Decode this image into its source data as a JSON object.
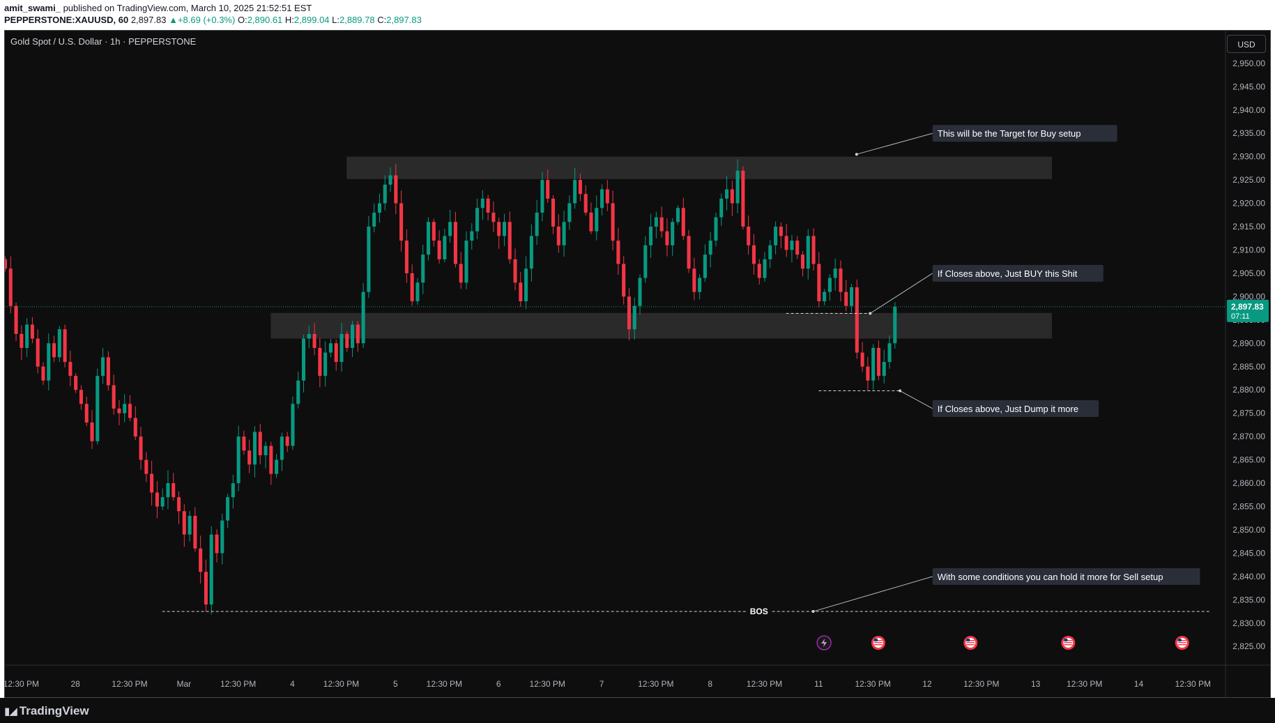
{
  "header": {
    "author": "amit_swami_",
    "published": "published on TradingView.com, March 10, 2025 21:52:51 EST",
    "symbol": "PEPPERSTONE:XAUUSD, 60",
    "last": "2,897.83",
    "arrow": "▲",
    "change": "+8.69 (+0.3%)",
    "o_label": "O:",
    "o_val": "2,890.61",
    "h_label": "H:",
    "h_val": "2,899.04",
    "l_label": "L:",
    "l_val": "2,889.78",
    "c_label": "C:",
    "c_val": "2,897.83"
  },
  "chart_title": "Gold Spot / U.S. Dollar · 1h · PEPPERSTONE",
  "currency_button": "USD",
  "footer_logo": "TradingView",
  "footer_logo_icon": "tradingview-logo-icon",
  "colors": {
    "up": "#089981",
    "down": "#f23645",
    "background": "#0e0e0e",
    "zone": "#2a2a2a",
    "price_tag": "#089981"
  },
  "chart_data": {
    "type": "candlestick",
    "title": "Gold Spot / U.S. Dollar · 1h · PEPPERSTONE",
    "ylim": [
      2821,
      2957
    ],
    "y_ticks": [
      2825,
      2830,
      2835,
      2840,
      2845,
      2850,
      2855,
      2860,
      2865,
      2870,
      2875,
      2880,
      2885,
      2890,
      2895,
      2900,
      2905,
      2910,
      2915,
      2920,
      2925,
      2930,
      2935,
      2940,
      2945,
      2950
    ],
    "y_tick_labels": [
      "2,825.00",
      "2,830.00",
      "2,835.00",
      "2,840.00",
      "2,845.00",
      "2,850.00",
      "2,855.00",
      "2,860.00",
      "2,865.00",
      "2,870.00",
      "2,875.00",
      "2,880.00",
      "2,885.00",
      "2,890.00",
      "2,895.00",
      "2,900.00",
      "2,905.00",
      "2,910.00",
      "2,915.00",
      "2,920.00",
      "2,925.00",
      "2,930.00",
      "2,935.00",
      "2,940.00",
      "2,945.00",
      "2,950.00"
    ],
    "x_range": [
      0,
      225
    ],
    "x_ticks": [
      {
        "x": 3,
        "label": "12:30 PM"
      },
      {
        "x": 13,
        "label": "28"
      },
      {
        "x": 23,
        "label": "12:30 PM"
      },
      {
        "x": 33,
        "label": "Mar"
      },
      {
        "x": 43,
        "label": "12:30 PM"
      },
      {
        "x": 53,
        "label": "4"
      },
      {
        "x": 62,
        "label": "12:30 PM"
      },
      {
        "x": 72,
        "label": "5"
      },
      {
        "x": 81,
        "label": "12:30 PM"
      },
      {
        "x": 91,
        "label": "6"
      },
      {
        "x": 100,
        "label": "12:30 PM"
      },
      {
        "x": 110,
        "label": "7"
      },
      {
        "x": 120,
        "label": "12:30 PM"
      },
      {
        "x": 130,
        "label": "8"
      },
      {
        "x": 140,
        "label": "12:30 PM"
      },
      {
        "x": 150,
        "label": "11"
      },
      {
        "x": 160,
        "label": "12:30 PM"
      },
      {
        "x": 170,
        "label": "12"
      },
      {
        "x": 180,
        "label": "12:30 PM"
      },
      {
        "x": 190,
        "label": "13"
      },
      {
        "x": 199,
        "label": "12:30 PM"
      },
      {
        "x": 209,
        "label": "14"
      },
      {
        "x": 219,
        "label": "12:30 PM"
      }
    ],
    "closes": [
      2906,
      2898,
      2892,
      2889,
      2894,
      2891,
      2885,
      2882,
      2890,
      2887,
      2893,
      2886,
      2883,
      2880,
      2877,
      2873,
      2869,
      2883,
      2887,
      2881,
      2876,
      2875,
      2877,
      2874,
      2870,
      2865,
      2862,
      2858,
      2855,
      2857,
      2860,
      2857,
      2854,
      2849,
      2853,
      2846,
      2841,
      2834,
      2849,
      2845,
      2852,
      2857,
      2860,
      2870,
      2867,
      2864,
      2871,
      2866,
      2868,
      2862,
      2865,
      2870,
      2868,
      2877,
      2882,
      2891,
      2892,
      2889,
      2883,
      2888,
      2890,
      2886,
      2892,
      2889,
      2894,
      2890,
      2901,
      2915,
      2918,
      2920,
      2924,
      2926,
      2920,
      2912,
      2905,
      2899,
      2903,
      2909,
      2916,
      2912,
      2908,
      2913,
      2916,
      2907,
      2903,
      2912,
      2914,
      2919,
      2921,
      2918,
      2916,
      2913,
      2916,
      2908,
      2903,
      2899,
      2906,
      2913,
      2918,
      2925,
      2921,
      2915,
      2911,
      2916,
      2920,
      2925,
      2922,
      2918,
      2914,
      2919,
      2923,
      2920,
      2912,
      2907,
      2900,
      2893,
      2898,
      2904,
      2911,
      2915,
      2917,
      2914,
      2911,
      2916,
      2919,
      2913,
      2906,
      2901,
      2904,
      2909,
      2912,
      2917,
      2921,
      2923,
      2920,
      2927,
      2915,
      2911,
      2907,
      2904,
      2908,
      2911,
      2915,
      2913,
      2910,
      2912,
      2909,
      2906,
      2913,
      2907,
      2899,
      2901,
      2904,
      2906,
      2901,
      2898,
      2902,
      2888,
      2885,
      2882,
      2889,
      2883,
      2886,
      2890,
      2897.83
    ],
    "last_price": 2897.83,
    "last_price_label": "2,897.83",
    "countdown": "07:11",
    "zones": [
      {
        "from": 63,
        "to": 193,
        "top": 2930.0,
        "bottom": 2925.2
      },
      {
        "from": 49,
        "to": 193,
        "top": 2896.5,
        "bottom": 2891.0
      }
    ],
    "levels": [
      {
        "from": 29,
        "to": 222,
        "y": 2832.5,
        "label": "BOS",
        "label_x": 139
      },
      {
        "from": 144,
        "to": 159,
        "y": 2896.4
      },
      {
        "from": 150,
        "to": 165,
        "y": 2879.8
      }
    ],
    "annotations": [
      {
        "text": "This will be the Target for Buy  setup",
        "anchor_x": 157,
        "anchor_y": 2930.5,
        "box_x": 171,
        "box_y": 2935.0
      },
      {
        "text": "If Closes above, Just BUY this Shit",
        "anchor_x": 159.5,
        "anchor_y": 2896.4,
        "box_x": 171,
        "box_y": 2905.0
      },
      {
        "text": "If Closes above, Just Dump it more",
        "anchor_x": 165,
        "anchor_y": 2879.8,
        "box_x": 171,
        "box_y": 2876.0
      },
      {
        "text": "With some conditions you can hold it more for Sell setup",
        "anchor_x": 149,
        "anchor_y": 2832.5,
        "box_x": 171,
        "box_y": 2840.0
      }
    ],
    "events": [
      {
        "x": 151,
        "kind": "lightning-icon"
      },
      {
        "x": 161,
        "kind": "us-flag-icon"
      },
      {
        "x": 178,
        "kind": "us-flag-icon"
      },
      {
        "x": 196,
        "kind": "us-flag-icon"
      },
      {
        "x": 217,
        "kind": "us-flag-icon"
      }
    ]
  }
}
